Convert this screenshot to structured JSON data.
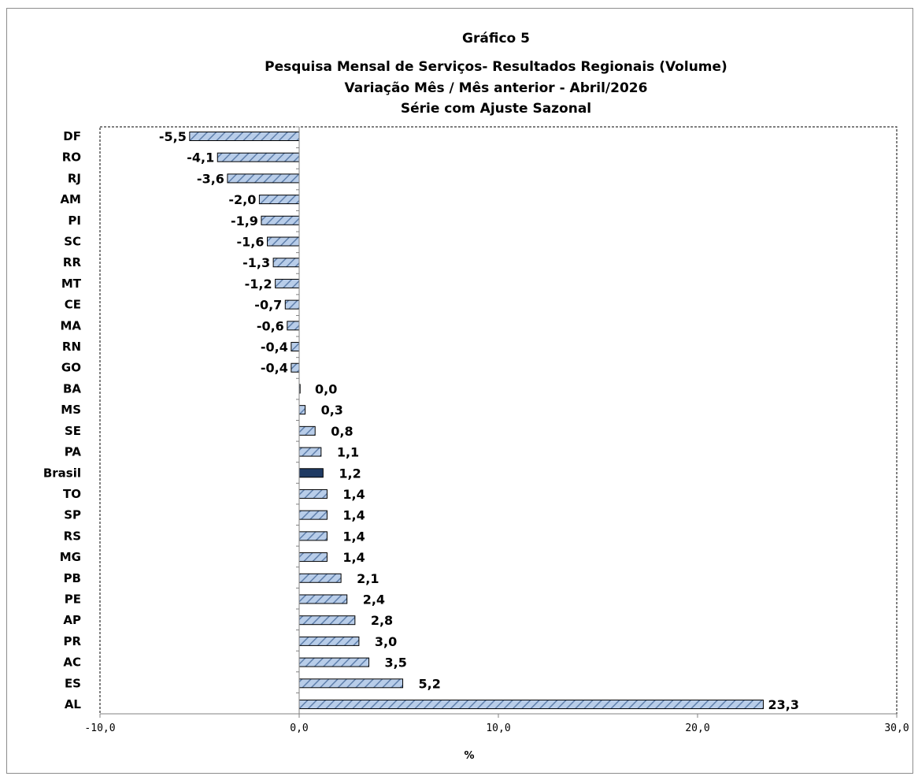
{
  "chart_data": {
    "type": "bar",
    "orientation": "horizontal",
    "title": "Gráfico 5",
    "subtitle": [
      "Pesquisa Mensal de Serviços- Resultados Regionais (Volume)",
      "Variação Mês / Mês anterior - Abril/2026",
      "Série com Ajuste Sazonal"
    ],
    "xlabel": "%",
    "ylabel": "",
    "xlim": [
      -10,
      30
    ],
    "xticks": [
      -10,
      0,
      10,
      20,
      30
    ],
    "xtick_labels": [
      "-10,0",
      "0,0",
      "10,0",
      "20,0",
      "30,0"
    ],
    "categories": [
      "DF",
      "RO",
      "RJ",
      "AM",
      "PI",
      "SC",
      "RR",
      "MT",
      "CE",
      "MA",
      "RN",
      "GO",
      "BA",
      "MS",
      "SE",
      "PA",
      "Brasil",
      "TO",
      "SP",
      "RS",
      "MG",
      "PB",
      "PE",
      "AP",
      "PR",
      "AC",
      "ES",
      "AL"
    ],
    "values": [
      -5.5,
      -4.1,
      -3.6,
      -2.0,
      -1.9,
      -1.6,
      -1.3,
      -1.2,
      -0.7,
      -0.6,
      -0.4,
      -0.4,
      0.0,
      0.3,
      0.8,
      1.1,
      1.2,
      1.4,
      1.4,
      1.4,
      1.4,
      2.1,
      2.4,
      2.8,
      3.0,
      3.5,
      5.2,
      23.3
    ],
    "value_labels": [
      "-5,5",
      "-4,1",
      "-3,6",
      "-2,0",
      "-1,9",
      "-1,6",
      "-1,3",
      "-1,2",
      "-0,7",
      "-0,6",
      "-0,4",
      "-0,4",
      "0,0",
      "0,3",
      "0,8",
      "1,1",
      "1,2",
      "1,4",
      "1,4",
      "1,4",
      "1,4",
      "2,1",
      "2,4",
      "2,8",
      "3,0",
      "3,5",
      "5,2",
      "23,3"
    ],
    "highlight_category": "Brasil",
    "bar_style": "hatched",
    "grid": false,
    "legend": "none",
    "colors": {
      "bar_fill": "#b8cde9",
      "bar_hatch": "#5f7fab",
      "highlight_fill": "#1f3a63",
      "bar_stroke": "#000000",
      "axis": "#808080"
    }
  }
}
